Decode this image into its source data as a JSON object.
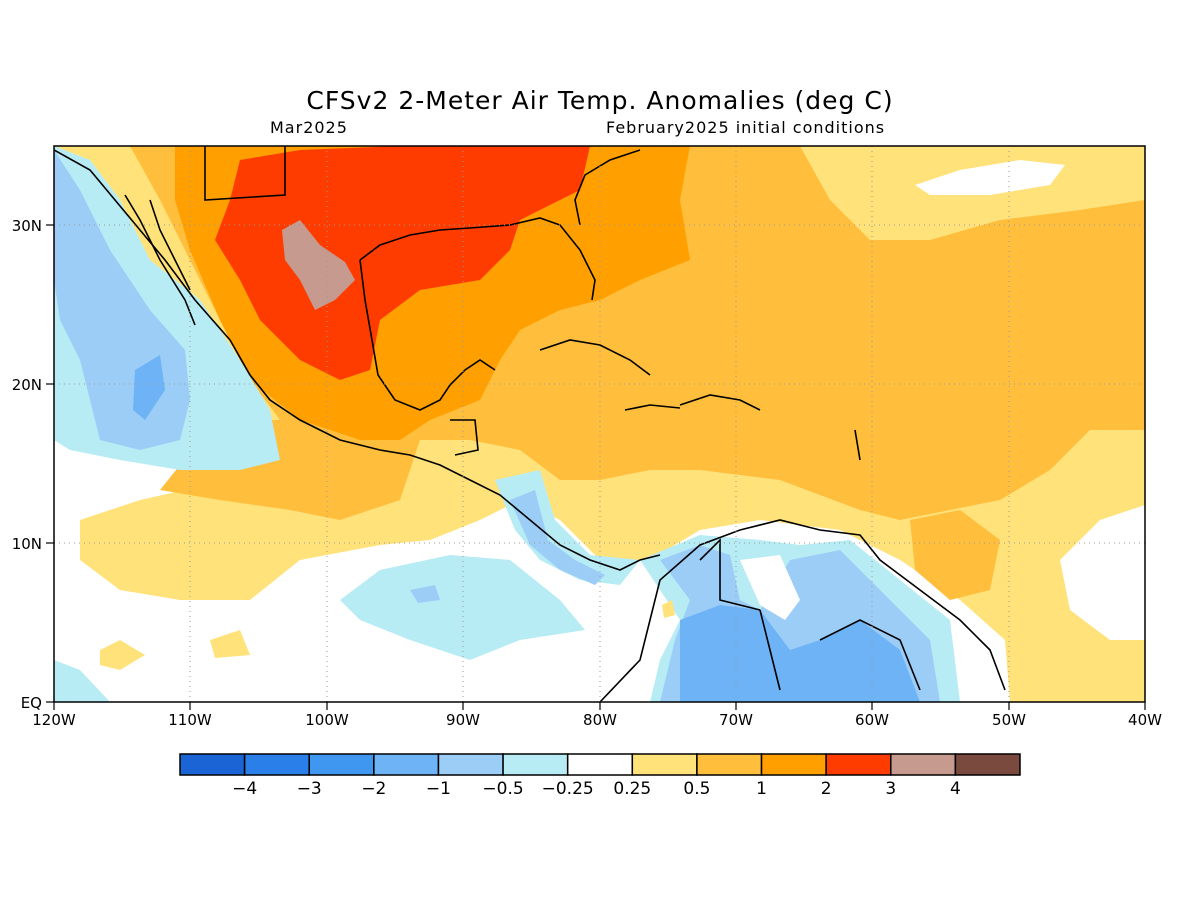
{
  "title": "CFSv2 2-Meter Air Temp. Anomalies (deg C)",
  "valid_month": "Mar2025",
  "init_conditions": "February2025 initial conditions",
  "map": {
    "lon_ticks": [
      "120W",
      "110W",
      "100W",
      "90W",
      "80W",
      "70W",
      "60W",
      "50W",
      "40W"
    ],
    "lat_ticks": [
      "30N",
      "20N",
      "10N",
      "EQ"
    ],
    "lon_range": [
      -120,
      -40
    ],
    "lat_range": [
      0,
      35
    ],
    "gridlines": true
  },
  "colorbar": {
    "colors": [
      "#1a64d6",
      "#2a7fe8",
      "#3f97f0",
      "#6db3f6",
      "#9ccdf7",
      "#b7ecf5",
      "#ffffff",
      "#ffe27a",
      "#ffbe3c",
      "#ff9f00",
      "#ff3c00",
      "#c69a8f",
      "#7a4a3f"
    ],
    "labels": [
      "-4",
      "-3",
      "-2",
      "-1",
      "-0.5",
      "-0.25",
      "0.25",
      "0.5",
      "1",
      "2",
      "3",
      "4"
    ]
  }
}
